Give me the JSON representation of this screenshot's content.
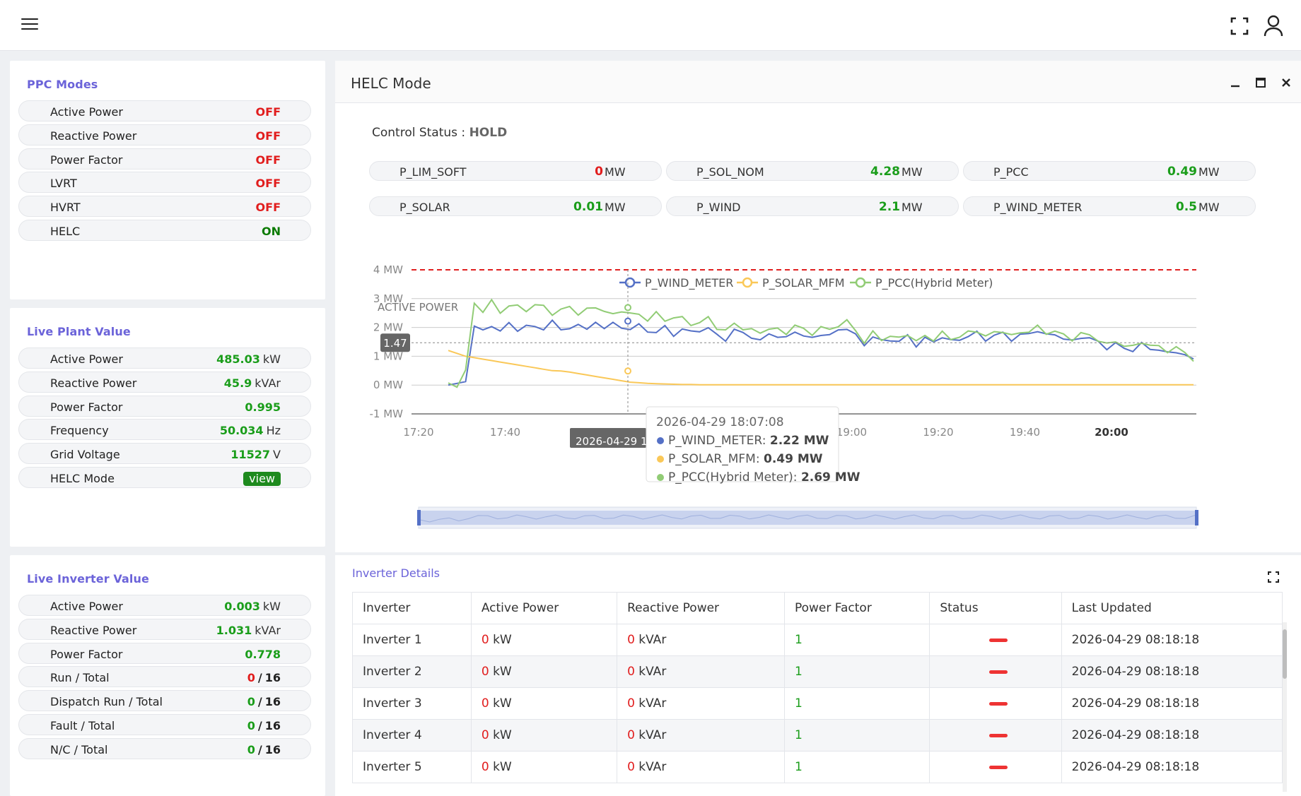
{
  "header": {
    "menu_icon": "hamburger-icon",
    "fullscreen_icon": "fullscreen-icon",
    "user_icon": "user-icon"
  },
  "ppc_modes": {
    "title": "PPC Modes",
    "items": [
      {
        "label": "Active Power",
        "value": "OFF"
      },
      {
        "label": "Reactive Power",
        "value": "OFF"
      },
      {
        "label": "Power Factor",
        "value": "OFF"
      },
      {
        "label": "LVRT",
        "value": "OFF"
      },
      {
        "label": "HVRT",
        "value": "OFF"
      },
      {
        "label": "HELC",
        "value": "ON"
      }
    ]
  },
  "live_plant": {
    "title": "Live Plant Value",
    "items": [
      {
        "label": "Active Power",
        "value": "485.03",
        "unit": "kW"
      },
      {
        "label": "Reactive Power",
        "value": "45.9",
        "unit": "kVAr"
      },
      {
        "label": "Power Factor",
        "value": "0.995",
        "unit": ""
      },
      {
        "label": "Frequency",
        "value": "50.034",
        "unit": "Hz"
      },
      {
        "label": "Grid Voltage",
        "value": "11527",
        "unit": "V"
      },
      {
        "label": "HELC Mode",
        "value": "view",
        "unit": ""
      }
    ]
  },
  "live_inverter": {
    "title": "Live Inverter Value",
    "items": [
      {
        "label": "Active Power",
        "value": "0.003",
        "unit": "kW"
      },
      {
        "label": "Reactive Power",
        "value": "1.031",
        "unit": "kVAr"
      },
      {
        "label": "Power Factor",
        "value": "0.778",
        "unit": ""
      },
      {
        "label": "Run / Total",
        "value": "0",
        "total": "16"
      },
      {
        "label": "Dispatch Run / Total",
        "value": "0",
        "total": "16"
      },
      {
        "label": "Fault / Total",
        "value": "0",
        "total": "16"
      },
      {
        "label": "N/C / Total",
        "value": "0",
        "total": "16"
      }
    ]
  },
  "helc": {
    "title": "HELC Mode",
    "control_status_label": "Control Status : ",
    "control_status_value": "HOLD",
    "metrics": [
      {
        "label": "P_LIM_SOFT",
        "value": "0",
        "unit": "MW"
      },
      {
        "label": "P_SOL_NOM",
        "value": "4.28",
        "unit": "MW"
      },
      {
        "label": "P_PCC",
        "value": "0.49",
        "unit": "MW"
      },
      {
        "label": "P_SOLAR",
        "value": "0.01",
        "unit": "MW"
      },
      {
        "label": "P_WIND",
        "value": "2.1",
        "unit": "MW"
      },
      {
        "label": "P_WIND_METER",
        "value": "0.5",
        "unit": "MW"
      }
    ]
  },
  "chart_data": {
    "type": "line",
    "ylabel": "ACTIVE POWER",
    "ylim": [
      -1,
      4
    ],
    "y_ticks": [
      "4 MW",
      "3 MW",
      "2 MW",
      "1 MW",
      "0 MW",
      "-1 MW"
    ],
    "x_ticks": [
      "17:20",
      "17:40",
      "18:00",
      "18:20",
      "18:40",
      "19:00",
      "19:20",
      "19:40",
      "20:00"
    ],
    "x_tick_bold": "20:00",
    "limit_line": 4,
    "crosshair_y_label": "1.47",
    "crosshair_x_label": "2026-04-29 18:07:08",
    "legend_position": "top-center",
    "colors": {
      "P_WIND_METER": "#5470c6",
      "P_SOLAR_MFM": "#fac858",
      "P_PCC(Hybrid Meter)": "#91cc75",
      "limit": "#e02020"
    },
    "series": [
      {
        "name": "P_WIND_METER",
        "values": [
          0,
          0,
          0.2,
          2.0,
          1.9,
          2.1,
          1.8,
          2.2,
          1.9,
          2.0,
          2.1,
          1.9,
          2.2,
          2.0,
          1.9,
          2.1,
          2.0,
          2.1,
          2.0,
          2.2,
          1.9,
          2.0,
          2.1,
          1.8,
          1.9,
          2.0,
          1.7,
          2.0,
          1.8,
          1.9,
          2.0,
          1.7,
          1.6,
          1.9,
          1.8,
          1.7,
          1.5,
          1.8,
          1.7,
          1.6,
          1.9,
          1.7,
          1.6,
          1.8,
          1.7,
          1.9,
          2.0,
          1.7,
          1.4,
          1.7,
          1.5,
          1.6,
          1.5,
          1.7,
          1.4,
          1.6,
          1.5,
          1.7,
          1.5,
          1.6,
          1.7,
          1.8,
          1.6,
          1.7,
          1.8,
          1.6,
          1.7,
          1.8,
          1.9,
          1.7,
          1.8,
          1.6,
          1.5,
          1.7,
          1.6,
          1.5,
          1.3,
          1.4,
          1.3,
          1.2,
          1.4,
          1.3,
          1.2,
          1.1,
          1.2,
          1.0,
          0.9
        ]
      },
      {
        "name": "P_SOLAR_MFM",
        "values": [
          1.2,
          1.1,
          1.0,
          0.95,
          0.9,
          0.85,
          0.8,
          0.75,
          0.7,
          0.65,
          0.6,
          0.55,
          0.5,
          0.49,
          0.45,
          0.4,
          0.35,
          0.3,
          0.25,
          0.2,
          0.15,
          0.1,
          0.08,
          0.06,
          0.05,
          0.04,
          0.03,
          0.02,
          0.02,
          0.01,
          0.01,
          0.01,
          0.01,
          0.01,
          0.01,
          0.01,
          0.01,
          0.01,
          0.01,
          0.01,
          0.01,
          0.01,
          0.01,
          0.01,
          0.01,
          0.01,
          0.01,
          0.01,
          0.01,
          0.01,
          0.01,
          0.01,
          0.01,
          0.01,
          0.01,
          0.01,
          0.01,
          0.01,
          0.01,
          0.01,
          0.01,
          0.01,
          0.01,
          0.01,
          0.01,
          0.01,
          0.01,
          0.01,
          0.01,
          0.01,
          0.01,
          0.01,
          0.01,
          0.01,
          0.01,
          0.01,
          0.01,
          0.01,
          0.01,
          0.01,
          0.01,
          0.01,
          0.01,
          0.01,
          0.01,
          0.01,
          0.01
        ]
      },
      {
        "name": "P_PCC(Hybrid Meter)",
        "values": [
          0,
          0,
          0.5,
          2.8,
          2.6,
          2.9,
          2.5,
          2.8,
          2.7,
          2.6,
          2.8,
          2.7,
          2.5,
          2.6,
          2.7,
          2.5,
          2.6,
          2.7,
          2.6,
          2.4,
          2.6,
          2.5,
          2.4,
          2.3,
          2.5,
          2.2,
          2.4,
          2.3,
          2.1,
          2.2,
          2.3,
          2.0,
          1.9,
          2.1,
          2.0,
          1.9,
          1.8,
          2.0,
          1.9,
          1.8,
          2.1,
          1.9,
          1.8,
          2.0,
          1.9,
          2.1,
          2.2,
          1.9,
          1.5,
          1.8,
          1.6,
          1.7,
          1.6,
          1.8,
          1.5,
          1.7,
          1.6,
          1.8,
          1.6,
          1.7,
          1.8,
          1.9,
          1.7,
          1.8,
          1.9,
          1.7,
          1.8,
          1.9,
          2.0,
          1.8,
          1.9,
          1.7,
          1.6,
          1.8,
          1.7,
          1.6,
          1.4,
          1.5,
          1.4,
          1.3,
          1.5,
          1.4,
          1.3,
          1.2,
          1.3,
          1.1,
          0.9
        ]
      }
    ],
    "tooltip": {
      "time": "2026-04-29 18:07:08",
      "rows": [
        {
          "name": "P_WIND_METER",
          "value": "2.22 MW"
        },
        {
          "name": "P_SOLAR_MFM",
          "value": "0.49 MW"
        },
        {
          "name": "P_PCC(Hybrid Meter)",
          "value": "2.69 MW"
        }
      ]
    }
  },
  "inverter_details": {
    "title": "Inverter Details",
    "columns": [
      "Inverter",
      "Active Power",
      "Reactive Power",
      "Power Factor",
      "Status",
      "Last Updated"
    ],
    "rows": [
      {
        "name": "Inverter 1",
        "active": "0",
        "active_unit": "kW",
        "reactive": "0",
        "reactive_unit": "kVAr",
        "pf": "1",
        "updated": "2026-04-29 08:18:18"
      },
      {
        "name": "Inverter 2",
        "active": "0",
        "active_unit": "kW",
        "reactive": "0",
        "reactive_unit": "kVAr",
        "pf": "1",
        "updated": "2026-04-29 08:18:18"
      },
      {
        "name": "Inverter 3",
        "active": "0",
        "active_unit": "kW",
        "reactive": "0",
        "reactive_unit": "kVAr",
        "pf": "1",
        "updated": "2026-04-29 08:18:18"
      },
      {
        "name": "Inverter 4",
        "active": "0",
        "active_unit": "kW",
        "reactive": "0",
        "reactive_unit": "kVAr",
        "pf": "1",
        "updated": "2026-04-29 08:18:18"
      },
      {
        "name": "Inverter 5",
        "active": "0",
        "active_unit": "kW",
        "reactive": "0",
        "reactive_unit": "kVAr",
        "pf": "1",
        "updated": "2026-04-29 08:18:18"
      }
    ]
  }
}
